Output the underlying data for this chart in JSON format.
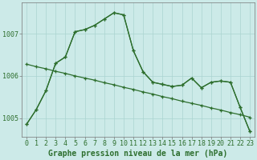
{
  "background_color": "#cceae8",
  "grid_color": "#aad4d0",
  "line_color": "#2d6e2d",
  "xlabel": "Graphe pression niveau de la mer (hPa)",
  "xlabel_fontsize": 7,
  "tick_fontsize": 6,
  "ylim": [
    1004.55,
    1007.75
  ],
  "yticks": [
    1005,
    1006,
    1007
  ],
  "xlim": [
    -0.5,
    23.5
  ],
  "hours": [
    0,
    1,
    2,
    3,
    4,
    5,
    6,
    7,
    8,
    9,
    10,
    11,
    12,
    13,
    14,
    15,
    16,
    17,
    18,
    19,
    20,
    21,
    22,
    23
  ],
  "series1": [
    1004.85,
    1005.2,
    1005.65,
    1006.3,
    1006.45,
    1007.05,
    1007.1,
    1007.2,
    1007.35,
    1007.5,
    1007.45,
    1006.6,
    1006.1,
    1005.85,
    1005.8,
    1005.75,
    1005.78,
    1005.95,
    1005.72,
    1005.85,
    1005.88,
    1005.85,
    1005.25,
    1004.68
  ],
  "series2": [
    1004.85,
    1005.2,
    1005.65,
    1006.3,
    1006.45,
    1007.05,
    1007.1,
    1007.2,
    1007.35,
    1007.5,
    1007.45,
    1006.6,
    1006.1,
    1005.85,
    1005.8,
    1005.75,
    1005.78,
    1005.95,
    1005.72,
    1005.85,
    1005.88,
    1005.85,
    1005.25,
    1004.68
  ],
  "series3": [
    1006.28,
    1006.22,
    1006.17,
    1006.11,
    1006.06,
    1006.0,
    1005.95,
    1005.9,
    1005.84,
    1005.79,
    1005.73,
    1005.68,
    1005.62,
    1005.57,
    1005.51,
    1005.46,
    1005.4,
    1005.35,
    1005.3,
    1005.24,
    1005.19,
    1005.13,
    1005.08,
    1005.02
  ]
}
